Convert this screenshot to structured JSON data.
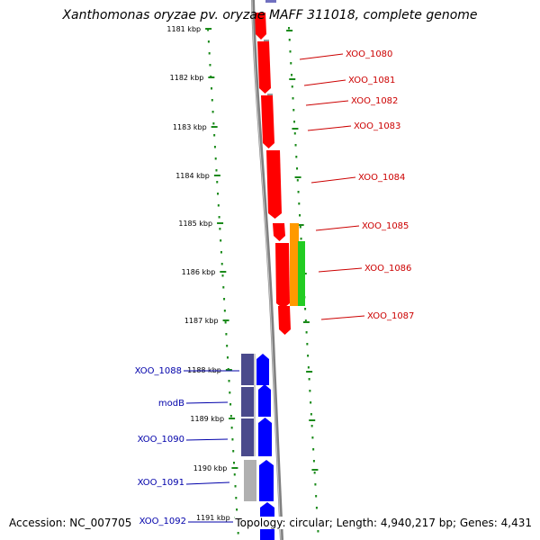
{
  "title": "Xanthomonas oryzae pv. oryzae MAFF 311018, complete genome",
  "footer": {
    "accession_label": "Accession: ",
    "accession": "NC_007705",
    "topology_label": "Topology: ",
    "topology": "circular",
    "length_label": "; Length: ",
    "length": "4,940,217 bp",
    "genes_label": "; Genes: ",
    "genes": "4,431"
  },
  "colors": {
    "backbone": "#808080",
    "ruler_ticks": "#1a8a1a",
    "gene_red": "#ff0000",
    "gene_blue": "#0000ff",
    "gene_purple": "#4a4a8c",
    "gene_orange": "#ff9900",
    "gene_green": "#22cc22",
    "gene_gray": "#b0b0b0",
    "label_red": "#cc0000",
    "label_blue": "#0000aa"
  },
  "ruler": {
    "unit": "kbp",
    "ticks": [
      "1181 kbp",
      "1182 kbp",
      "1183 kbp",
      "1184 kbp",
      "1185 kbp",
      "1186 kbp",
      "1187 kbp",
      "1188 kbp",
      "1189 kbp",
      "1190 kbp",
      "1191 kbp"
    ]
  },
  "genes": [
    {
      "name": "XOO_1080",
      "color": "red",
      "strand": "minus"
    },
    {
      "name": "XOO_1081",
      "color": "red",
      "strand": "minus"
    },
    {
      "name": "XOO_1082",
      "color": "red",
      "strand": "minus"
    },
    {
      "name": "XOO_1083",
      "color": "red",
      "strand": "minus"
    },
    {
      "name": "XOO_1084",
      "color": "red",
      "strand": "minus"
    },
    {
      "name": "XOO_1085",
      "color": "red",
      "strand": "minus"
    },
    {
      "name": "XOO_1086",
      "color": "red",
      "strand": "minus"
    },
    {
      "name": "XOO_1087",
      "color": "red",
      "strand": "minus"
    },
    {
      "name": "XOO_1088",
      "color": "blue",
      "strand": "plus"
    },
    {
      "name": "modB",
      "color": "blue",
      "strand": "plus"
    },
    {
      "name": "XOO_1090",
      "color": "blue",
      "strand": "plus"
    },
    {
      "name": "XOO_1091",
      "color": "blue",
      "strand": "plus"
    },
    {
      "name": "XOO_1092",
      "color": "blue",
      "strand": "plus"
    }
  ]
}
